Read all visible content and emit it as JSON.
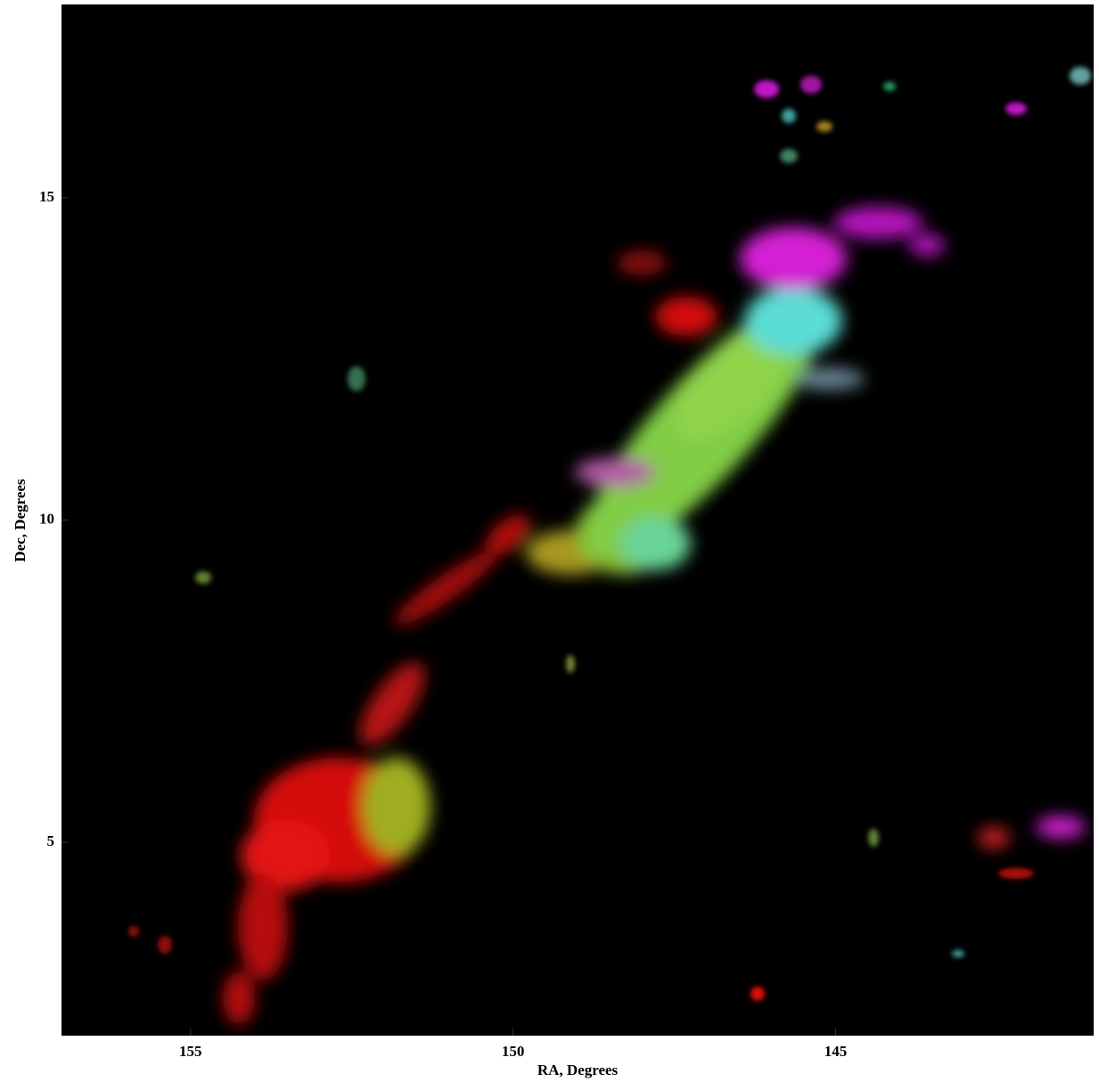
{
  "chart_data": {
    "type": "image",
    "xlabel": "RA, Degrees",
    "ylabel": "Dec, Degrees",
    "xlim": [
      157,
      141
    ],
    "ylim": [
      2,
      18
    ],
    "xticks": [
      155,
      150,
      145
    ],
    "yticks": [
      5,
      10,
      15
    ]
  }
}
